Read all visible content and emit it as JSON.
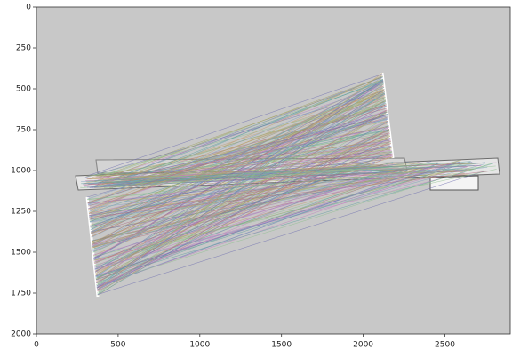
{
  "chart_data": {
    "type": "image",
    "xlim": [
      0,
      2900
    ],
    "xticks": [
      0,
      500,
      1000,
      1500,
      2000,
      2500
    ],
    "ylim": [
      0,
      2000
    ],
    "yticks": [
      0,
      250,
      500,
      750,
      1000,
      1250,
      1500,
      1750,
      2000
    ],
    "y_inverted": true,
    "background": "#c8c8c8"
  }
}
